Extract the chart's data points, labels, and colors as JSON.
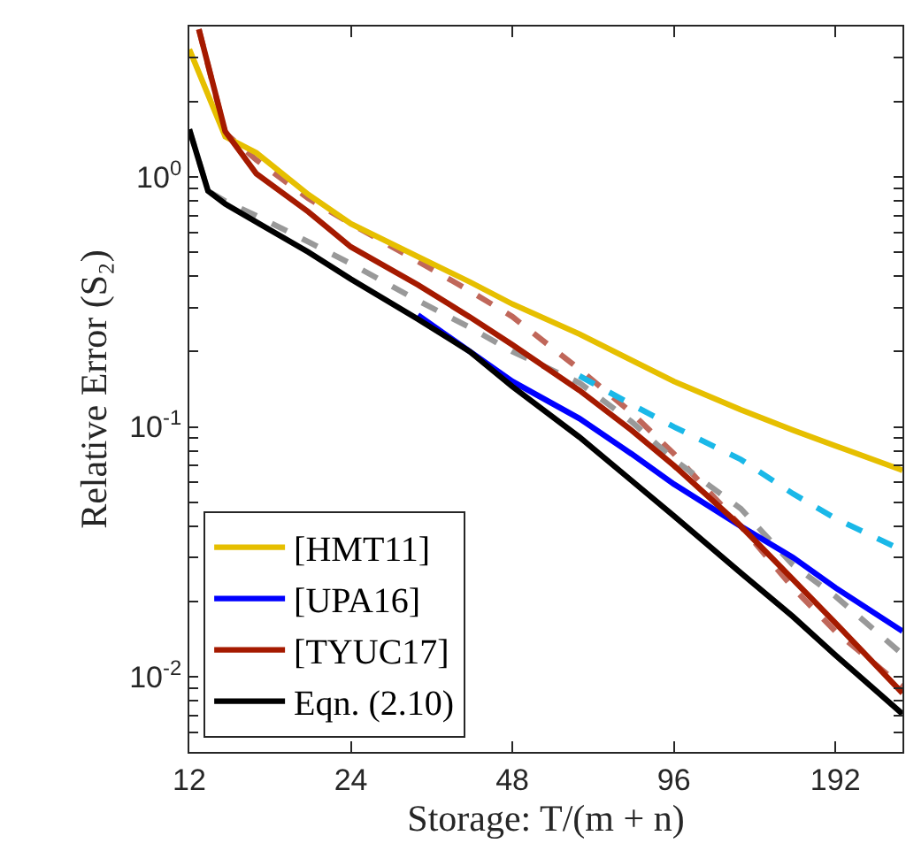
{
  "chart_data": {
    "type": "line",
    "xlabel": "Storage: T/(m + n)",
    "ylabel": "Relative Error (S₂)",
    "log": "xy",
    "legend": "bottom left",
    "marker": "none",
    "xlim": [
      12,
      256
    ],
    "xticks": [
      12,
      24,
      48,
      96,
      192
    ],
    "ylim": [
      0.005,
      4
    ],
    "yticks": [
      {
        "value": 0.006,
        "label": null
      },
      {
        "value": 0.007,
        "label": null
      },
      {
        "value": 0.008,
        "label": null
      },
      {
        "value": 0.009,
        "label": null
      },
      {
        "value": 0.01,
        "label": "10$^{-2}$"
      },
      {
        "value": 0.02,
        "label": null
      },
      {
        "value": 0.03,
        "label": null
      },
      {
        "value": 0.04,
        "label": null
      },
      {
        "value": 0.05,
        "label": null
      },
      {
        "value": 0.06,
        "label": null
      },
      {
        "value": 0.07,
        "label": null
      },
      {
        "value": 0.08,
        "label": null
      },
      {
        "value": 0.09,
        "label": null
      },
      {
        "value": 0.1,
        "label": "10$^{-1}$"
      },
      {
        "value": 0.2,
        "label": null
      },
      {
        "value": 0.3,
        "label": null
      },
      {
        "value": 0.4,
        "label": null
      },
      {
        "value": 0.5,
        "label": null
      },
      {
        "value": 0.6,
        "label": null
      },
      {
        "value": 0.7,
        "label": null
      },
      {
        "value": 0.8,
        "label": null
      },
      {
        "value": 0.9,
        "label": null
      },
      {
        "value": 1,
        "label": "10$^{0}$"
      },
      {
        "value": 2,
        "label": null
      },
      {
        "value": 3,
        "label": null
      }
    ],
    "series": [
      {
        "color": "#c0675a",
        "line_style": "dashed",
        "x": [
          12.5,
          14,
          16,
          20,
          24,
          32,
          40,
          48,
          64,
          80,
          96,
          128,
          160,
          192,
          256
        ],
        "values": [
          3.9,
          1.5,
          1.17,
          0.82,
          0.65,
          0.46,
          0.35,
          0.276,
          0.17,
          0.114,
          0.078,
          0.04,
          0.0227,
          0.0152,
          0.0091
        ]
      },
      {
        "color": "#1ab8e8",
        "line_style": "dashed",
        "x": [
          64,
          80,
          96,
          128,
          160,
          192,
          256
        ],
        "values": [
          0.16,
          0.123,
          0.1,
          0.074,
          0.054,
          0.043,
          0.032
        ]
      },
      {
        "color": "#999999",
        "line_style": "dashed",
        "x": [
          12,
          13,
          14,
          16,
          20,
          24,
          32,
          40,
          48,
          64,
          80,
          96,
          128,
          160,
          192,
          256
        ],
        "values": [
          1.55,
          0.88,
          0.8,
          0.7,
          0.55,
          0.45,
          0.32,
          0.25,
          0.2,
          0.15,
          0.105,
          0.074,
          0.047,
          0.028,
          0.021,
          0.0123
        ]
      },
      {
        "name": "[HMT11]",
        "color": "#e6bf00",
        "line_style": "solid",
        "x": [
          12,
          14,
          16,
          20,
          24,
          32,
          40,
          48,
          64,
          80,
          96,
          128,
          160,
          192,
          256
        ],
        "values": [
          3.24,
          1.45,
          1.25,
          0.85,
          0.65,
          0.48,
          0.38,
          0.31,
          0.235,
          0.185,
          0.152,
          0.117,
          0.097,
          0.084,
          0.067
        ]
      },
      {
        "name": "[UPA16]",
        "color": "#0000ff",
        "line_style": "solid",
        "x": [
          32,
          40,
          48,
          64,
          80,
          96,
          128,
          160,
          192,
          256
        ],
        "values": [
          0.28,
          0.2,
          0.152,
          0.108,
          0.078,
          0.059,
          0.04,
          0.03,
          0.0227,
          0.0152
        ]
      },
      {
        "name": "[TYUC17]",
        "color": "#a51a00",
        "line_style": "solid",
        "x": [
          12.5,
          14,
          16,
          20,
          24,
          32,
          40,
          48,
          64,
          80,
          96,
          128,
          160,
          192,
          256
        ],
        "values": [
          3.9,
          1.52,
          1.03,
          0.725,
          0.525,
          0.37,
          0.275,
          0.213,
          0.14,
          0.097,
          0.07,
          0.04,
          0.0245,
          0.0164,
          0.0086
        ]
      },
      {
        "name": "Eqn. (2.10)",
        "color": "#000000",
        "line_style": "solid",
        "x": [
          12,
          13,
          14,
          16,
          20,
          24,
          32,
          40,
          48,
          64,
          80,
          96,
          128,
          160,
          192,
          256
        ],
        "values": [
          1.55,
          0.88,
          0.78,
          0.66,
          0.5,
          0.39,
          0.27,
          0.2,
          0.145,
          0.091,
          0.061,
          0.044,
          0.026,
          0.0174,
          0.0122,
          0.0071
        ]
      }
    ]
  }
}
